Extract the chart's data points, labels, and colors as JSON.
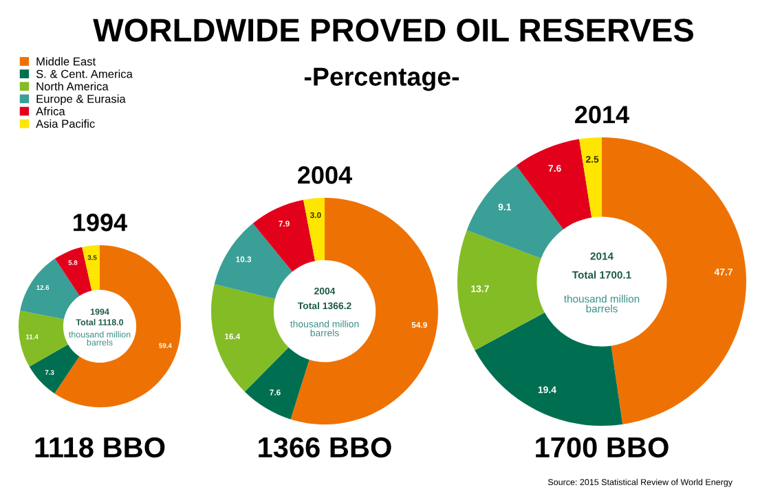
{
  "chart_data": [
    {
      "type": "other",
      "title": "WORLDWIDE PROVED OIL RESERVES",
      "subtitle": "-Percentage-",
      "annotations": [
        "Source: 2015 Statistical Review of World Energy"
      ]
    },
    {
      "type": "donut",
      "title": "1994",
      "categories": [
        "Middle East",
        "S. & Cent. America",
        "North America",
        "Europe & Eurasia",
        "Africa",
        "Asia Pacific"
      ],
      "values": [
        59.4,
        7.3,
        11.4,
        12.6,
        5.8,
        3.5
      ],
      "value_labels": [
        "59.4",
        "7.3",
        "11.4",
        "12.6",
        "5.8",
        "3.5"
      ],
      "colors": [
        "#ee7203",
        "#006f51",
        "#84bc25",
        "#3a9f96",
        "#e3001b",
        "#ffe600"
      ],
      "legend": "top left",
      "annotations": [
        "1994",
        "Total 1118.0",
        "thousand million barrels",
        "1118 BBO"
      ]
    },
    {
      "type": "donut",
      "title": "2004",
      "categories": [
        null,
        null,
        null,
        null,
        null,
        null
      ],
      "values": [
        54.9,
        7.6,
        16.4,
        10.3,
        7.9,
        3.0
      ],
      "value_labels": [
        "54.9",
        "7.6",
        "16.4",
        "10.3",
        "7.9",
        "3.0"
      ],
      "colors": [
        "#ee7203",
        "#006f51",
        "#84bc25",
        "#3a9f96",
        "#e3001b",
        "#ffe600"
      ],
      "annotations": [
        "2004",
        "Total 1366.2",
        "thousand million barrels",
        "1366 BBO"
      ]
    },
    {
      "type": "donut",
      "title": "2014",
      "categories": [
        null,
        null,
        null,
        null,
        null,
        null
      ],
      "values": [
        47.7,
        19.4,
        13.7,
        9.1,
        7.6,
        2.5
      ],
      "value_labels": [
        "47.7",
        "19.4",
        "13.7",
        "9.1",
        "7.6",
        "2.5"
      ],
      "colors": [
        "#ee7203",
        "#006f51",
        "#84bc25",
        "#3a9f96",
        "#e3001b",
        "#ffe600"
      ],
      "annotations": [
        "2014",
        "Total 1700.1",
        "thousand million barrels",
        "1700 BBO"
      ]
    }
  ]
}
